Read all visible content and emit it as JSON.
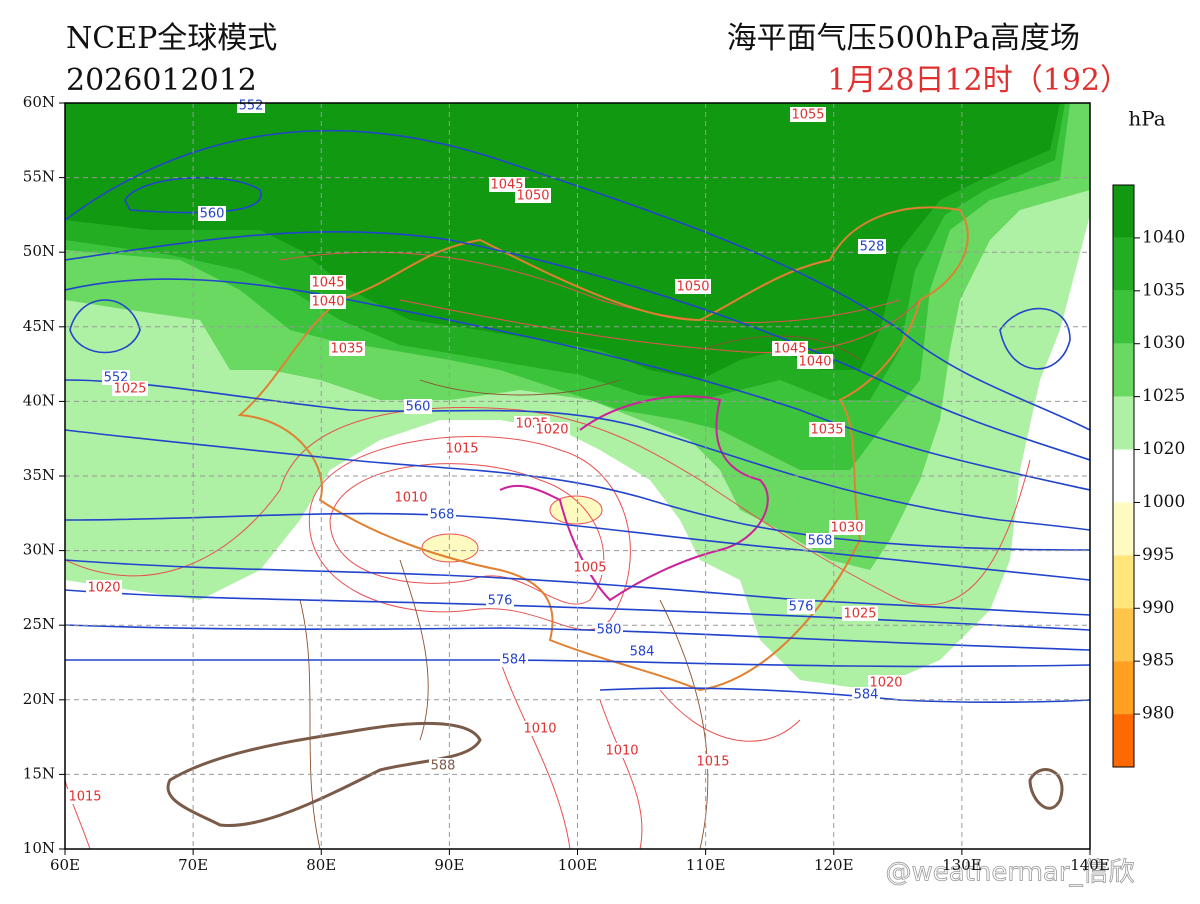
{
  "header": {
    "model": "NCEP全球模式",
    "init_time": "2026012012",
    "field": "海平面气压500hPa高度场",
    "valid_time": "1月28日12时（192）"
  },
  "map": {
    "lat_labels": [
      "60N",
      "55N",
      "50N",
      "45N",
      "40N",
      "35N",
      "30N",
      "25N",
      "20N",
      "15N",
      "10N"
    ],
    "lon_labels": [
      "60E",
      "70E",
      "80E",
      "90E",
      "100E",
      "110E",
      "120E",
      "130E",
      "140E"
    ],
    "contour_labels": [
      {
        "text": "552",
        "color": "#2244cc"
      },
      {
        "text": "560",
        "color": "#2244cc"
      },
      {
        "text": "1045",
        "color": "#e03030"
      },
      {
        "text": "1050",
        "color": "#e03030"
      },
      {
        "text": "1055",
        "color": "#e03030"
      },
      {
        "text": "1045",
        "color": "#e03030"
      },
      {
        "text": "1040",
        "color": "#e03030"
      },
      {
        "text": "1035",
        "color": "#e03030"
      },
      {
        "text": "1050",
        "color": "#e03030"
      },
      {
        "text": "1045",
        "color": "#e03030"
      },
      {
        "text": "1040",
        "color": "#e03030"
      },
      {
        "text": "528",
        "color": "#2244cc"
      },
      {
        "text": "552",
        "color": "#2244cc"
      },
      {
        "text": "1025",
        "color": "#e03030"
      },
      {
        "text": "560",
        "color": "#2244cc"
      },
      {
        "text": "1025",
        "color": "#e03030"
      },
      {
        "text": "1020",
        "color": "#e03030"
      },
      {
        "text": "1015",
        "color": "#e03030"
      },
      {
        "text": "1035",
        "color": "#e03030"
      },
      {
        "text": "1010",
        "color": "#e03030"
      },
      {
        "text": "568",
        "color": "#2244cc"
      },
      {
        "text": "1030",
        "color": "#e03030"
      },
      {
        "text": "568",
        "color": "#2244cc"
      },
      {
        "text": "1005",
        "color": "#e03030"
      },
      {
        "text": "1020",
        "color": "#e03030"
      },
      {
        "text": "576",
        "color": "#2244cc"
      },
      {
        "text": "576",
        "color": "#2244cc"
      },
      {
        "text": "1025",
        "color": "#e03030"
      },
      {
        "text": "580",
        "color": "#2244cc"
      },
      {
        "text": "584",
        "color": "#2244cc"
      },
      {
        "text": "584",
        "color": "#2244cc"
      },
      {
        "text": "1020",
        "color": "#e03030"
      },
      {
        "text": "584",
        "color": "#2244cc"
      },
      {
        "text": "1010",
        "color": "#e03030"
      },
      {
        "text": "1010",
        "color": "#e03030"
      },
      {
        "text": "1015",
        "color": "#e03030"
      },
      {
        "text": "588",
        "color": "#7a5a48"
      },
      {
        "text": "1015",
        "color": "#e03030"
      }
    ]
  },
  "colorbar": {
    "unit": "hPa",
    "labels": [
      1040,
      1035,
      1030,
      1025,
      1020,
      1000,
      995,
      990,
      985,
      980
    ],
    "colors": [
      "#119a11",
      "#22ad22",
      "#3cc33c",
      "#6ad962",
      "#aef0a4",
      "#ffffff",
      "#fffac0",
      "#ffe57a",
      "#ffc44a",
      "#ffa020",
      "#ff6a00"
    ]
  },
  "watermark": "@weathermar_信欣"
}
